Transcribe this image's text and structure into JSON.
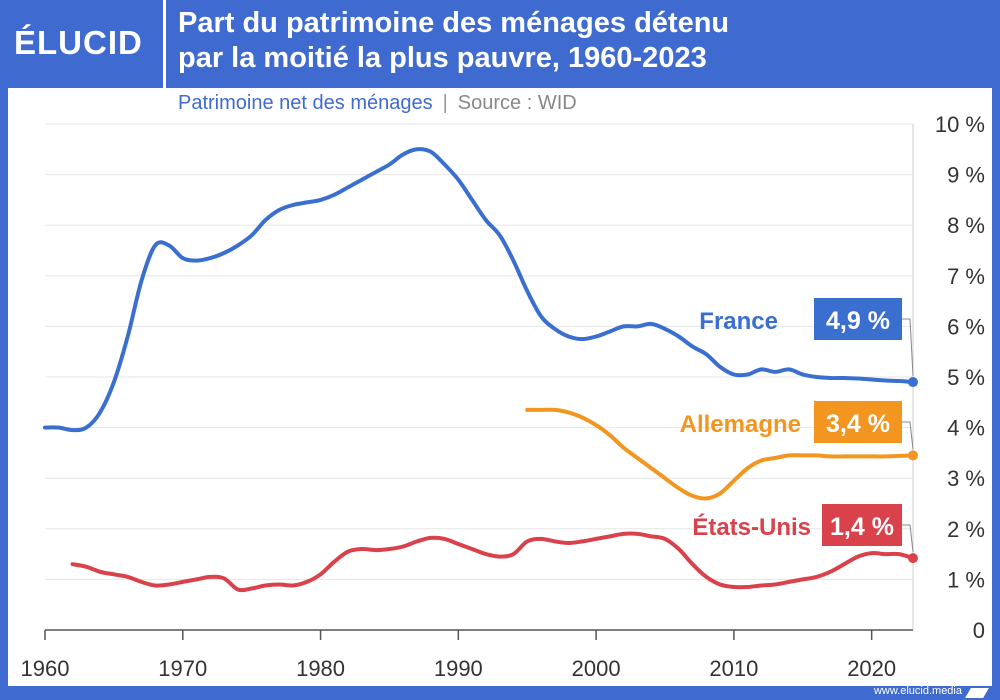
{
  "brand": {
    "logo_text": "ÉLUCID",
    "footer_url": "www.elucid.media"
  },
  "header": {
    "title_line1": "Part du patrimoine des ménages détenu",
    "title_line2": "par la moitié la plus pauvre, 1960-2023"
  },
  "subtitle": {
    "main": "Patrimoine net des ménages",
    "separator": "|",
    "source": "Source : WID"
  },
  "colors": {
    "france": "#3a6fd0",
    "allemagne": "#f2961f",
    "etats_unis": "#d9414b",
    "accent": "#3f6ad0",
    "grid": "#e6e6e6",
    "axis": "#555555"
  },
  "chart_data": {
    "type": "line",
    "title": "Part du patrimoine des ménages détenu par la moitié la plus pauvre, 1960-2023",
    "xlabel": "",
    "ylabel": "",
    "xlim": [
      1960,
      2023
    ],
    "ylim": [
      0,
      10
    ],
    "x_ticks": [
      1960,
      1970,
      1980,
      1990,
      2000,
      2010,
      2020
    ],
    "x_tick_labels": [
      "1960",
      "1970",
      "1980",
      "1990",
      "2000",
      "2010",
      "2020"
    ],
    "y_ticks": [
      0,
      1,
      2,
      3,
      4,
      5,
      6,
      7,
      8,
      9,
      10
    ],
    "y_tick_labels": [
      "0",
      "1 %",
      "2 %",
      "3 %",
      "4 %",
      "5 %",
      "6 %",
      "7 %",
      "8 %",
      "9 %",
      "10 %"
    ],
    "grid": true,
    "series": [
      {
        "name": "France",
        "color": "#3a6fd0",
        "end_label": "4,9 %",
        "x": [
          1960,
          1961,
          1962,
          1963,
          1964,
          1965,
          1966,
          1967,
          1968,
          1969,
          1970,
          1971,
          1972,
          1973,
          1974,
          1975,
          1976,
          1977,
          1978,
          1979,
          1980,
          1981,
          1982,
          1983,
          1984,
          1985,
          1986,
          1987,
          1988,
          1989,
          1990,
          1991,
          1992,
          1993,
          1994,
          1995,
          1996,
          1997,
          1998,
          1999,
          2000,
          2001,
          2002,
          2003,
          2004,
          2005,
          2006,
          2007,
          2008,
          2009,
          2010,
          2011,
          2012,
          2013,
          2014,
          2015,
          2016,
          2017,
          2018,
          2019,
          2020,
          2021,
          2022,
          2023
        ],
        "values": [
          4.0,
          4.0,
          3.95,
          4.0,
          4.3,
          4.9,
          5.8,
          6.9,
          7.6,
          7.6,
          7.35,
          7.3,
          7.35,
          7.45,
          7.6,
          7.8,
          8.1,
          8.3,
          8.4,
          8.45,
          8.5,
          8.6,
          8.75,
          8.9,
          9.05,
          9.2,
          9.4,
          9.5,
          9.45,
          9.2,
          8.9,
          8.5,
          8.1,
          7.8,
          7.3,
          6.7,
          6.2,
          5.95,
          5.8,
          5.75,
          5.8,
          5.9,
          6.0,
          6.0,
          6.05,
          5.95,
          5.8,
          5.6,
          5.45,
          5.2,
          5.05,
          5.05,
          5.15,
          5.1,
          5.15,
          5.05,
          5.0,
          4.98,
          4.98,
          4.97,
          4.95,
          4.93,
          4.92,
          4.9
        ]
      },
      {
        "name": "Allemagne",
        "color": "#f2961f",
        "end_label": "3,4 %",
        "x": [
          1995,
          1996,
          1997,
          1998,
          1999,
          2000,
          2001,
          2002,
          2003,
          2004,
          2005,
          2006,
          2007,
          2008,
          2009,
          2010,
          2011,
          2012,
          2013,
          2014,
          2015,
          2016,
          2017,
          2018,
          2019,
          2020,
          2021,
          2022,
          2023
        ],
        "values": [
          4.35,
          4.35,
          4.35,
          4.3,
          4.2,
          4.05,
          3.85,
          3.6,
          3.4,
          3.2,
          3.0,
          2.8,
          2.65,
          2.6,
          2.7,
          2.95,
          3.2,
          3.35,
          3.4,
          3.45,
          3.45,
          3.45,
          3.43,
          3.43,
          3.43,
          3.43,
          3.43,
          3.44,
          3.45
        ]
      },
      {
        "name": "États-Unis",
        "color": "#d9414b",
        "end_label": "1,4 %",
        "x": [
          1962,
          1963,
          1964,
          1965,
          1966,
          1967,
          1968,
          1969,
          1970,
          1971,
          1972,
          1973,
          1974,
          1975,
          1976,
          1977,
          1978,
          1979,
          1980,
          1981,
          1982,
          1983,
          1984,
          1985,
          1986,
          1987,
          1988,
          1989,
          1990,
          1991,
          1992,
          1993,
          1994,
          1995,
          1996,
          1997,
          1998,
          1999,
          2000,
          2001,
          2002,
          2003,
          2004,
          2005,
          2006,
          2007,
          2008,
          2009,
          2010,
          2011,
          2012,
          2013,
          2014,
          2015,
          2016,
          2017,
          2018,
          2019,
          2020,
          2021,
          2022,
          2023
        ],
        "values": [
          1.3,
          1.25,
          1.15,
          1.1,
          1.05,
          0.95,
          0.88,
          0.9,
          0.95,
          1.0,
          1.05,
          1.02,
          0.8,
          0.82,
          0.88,
          0.9,
          0.88,
          0.95,
          1.1,
          1.35,
          1.55,
          1.6,
          1.58,
          1.6,
          1.65,
          1.75,
          1.82,
          1.8,
          1.7,
          1.6,
          1.5,
          1.45,
          1.5,
          1.75,
          1.8,
          1.75,
          1.72,
          1.75,
          1.8,
          1.85,
          1.9,
          1.9,
          1.85,
          1.8,
          1.6,
          1.3,
          1.05,
          0.9,
          0.85,
          0.85,
          0.88,
          0.9,
          0.95,
          1.0,
          1.05,
          1.15,
          1.3,
          1.45,
          1.52,
          1.5,
          1.5,
          1.42
        ]
      }
    ]
  }
}
